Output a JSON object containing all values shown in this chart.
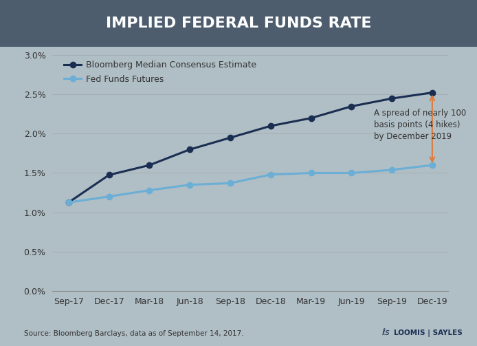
{
  "title": "IMPLIED FEDERAL FUNDS RATE",
  "title_bg_color": "#4d5d6e",
  "title_text_color": "#ffffff",
  "bg_color": "#b0bec5",
  "plot_bg_color": "#b0bec5",
  "x_labels": [
    "Sep-17",
    "Dec-17",
    "Mar-18",
    "Jun-18",
    "Sep-18",
    "Dec-18",
    "Mar-19",
    "Jun-19",
    "Sep-19",
    "Dec-19"
  ],
  "bloomberg_values": [
    1.125,
    1.475,
    1.6,
    1.8,
    1.95,
    2.1,
    2.2,
    2.35,
    2.45,
    2.525
  ],
  "futures_values": [
    1.125,
    1.2,
    1.28,
    1.35,
    1.37,
    1.48,
    1.5,
    1.5,
    1.54,
    1.6
  ],
  "bloomberg_color": "#1a2e52",
  "futures_color": "#6baed6",
  "bloomberg_label": "Bloomberg Median Consensus Estimate",
  "futures_label": "Fed Funds Futures",
  "ytick_vals": [
    0.0,
    0.005,
    0.01,
    0.015,
    0.02,
    0.025,
    0.03
  ],
  "ytick_labels": [
    "0.0%",
    "0.5%",
    "1.0%",
    "1.5%",
    "2.0%",
    "2.5%",
    "3.0%"
  ],
  "annotation_text": "A spread of nearly 100\nbasis points (4 hikes)\nby December 2019",
  "annotation_color": "#e07b39",
  "source_text": "Source: Bloomberg Barclays, data as of September 14, 2017.",
  "marker_style": "o",
  "line_width": 2.2,
  "marker_size": 6
}
